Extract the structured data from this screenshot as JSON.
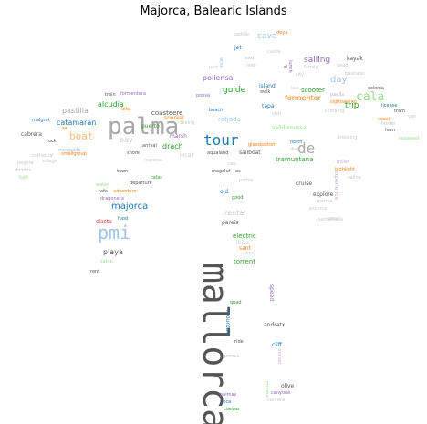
{
  "title": "Majorca, Balearic Islands",
  "palette": {
    "gray": "#a8a8a8",
    "darkgray": "#555555",
    "lightgray": "#c8c8c8",
    "blue": "#1f77b4",
    "lightblue": "#9ec5e8",
    "orange": "#ff7f0e",
    "lightorange": "#ffbb78",
    "green": "#2ca02c",
    "lightgreen": "#98df8a",
    "purple": "#9467bd",
    "lightpurple": "#c5b0d5",
    "red": "#d62728",
    "teal": "#17becf",
    "pink": "#f7b6d2",
    "olive": "#8c8c5a"
  },
  "words": [
    "mallorca",
    "palma",
    "pmi",
    "tour",
    "de",
    "cala",
    "majorca",
    "boat",
    "sailing",
    "cave",
    "guide",
    "day",
    "trip",
    "catamaran",
    "alcudia",
    "pastilla",
    "bay",
    "drach",
    "rental",
    "playa",
    "pollensa",
    "formentor",
    "tramuntana",
    "coasteere",
    "ratjada",
    "torrent",
    "andratx",
    "cliff",
    "valldemossa",
    "sailboat",
    "cruise",
    "explore",
    "experience",
    "escorca",
    "palmanova",
    "sant",
    "ibiza",
    "electric",
    "local",
    "scooter",
    "puerto",
    "snorkel",
    "marsh",
    "jet",
    "paddle",
    "east",
    "island",
    "kayak",
    "cabrera",
    "malgrat",
    "rock",
    "mesquida",
    "smallgroup",
    "dolphin",
    "village",
    "half",
    "water",
    "rafa",
    "dragonera",
    "clasta",
    "food",
    "rent",
    "mountain",
    "quad",
    "speed",
    "ride",
    "olive",
    "palmas",
    "inca",
    "cuevas",
    "cantera",
    "canyone",
    "genova",
    "sunset",
    "pareis",
    "hike",
    "private",
    "good",
    "shore",
    "arrival",
    "departure",
    "town",
    "calas",
    "magaluf",
    "es",
    "palme",
    "port",
    "dive",
    "aqualand",
    "glassbottom",
    "north",
    "visit",
    "walk",
    "beach",
    "ponsa",
    "diving",
    "bike",
    "train",
    "formentera",
    "coast",
    "ham",
    "license",
    "colonia",
    "tram",
    "van",
    "paella",
    "sightseeing",
    "climbing",
    "lunch",
    "gaudi",
    "business",
    "city",
    "tapa",
    "miller",
    "highlight",
    "salina",
    "pearl",
    "adventure",
    "old",
    "cap",
    "sa",
    "cathedral",
    "pegera",
    "wine",
    "castle",
    "deya",
    "el",
    "family",
    "lluc",
    "hostel",
    "trekking",
    "jeep",
    "seaweed",
    "marine",
    "santo",
    "majorca"
  ]
}
